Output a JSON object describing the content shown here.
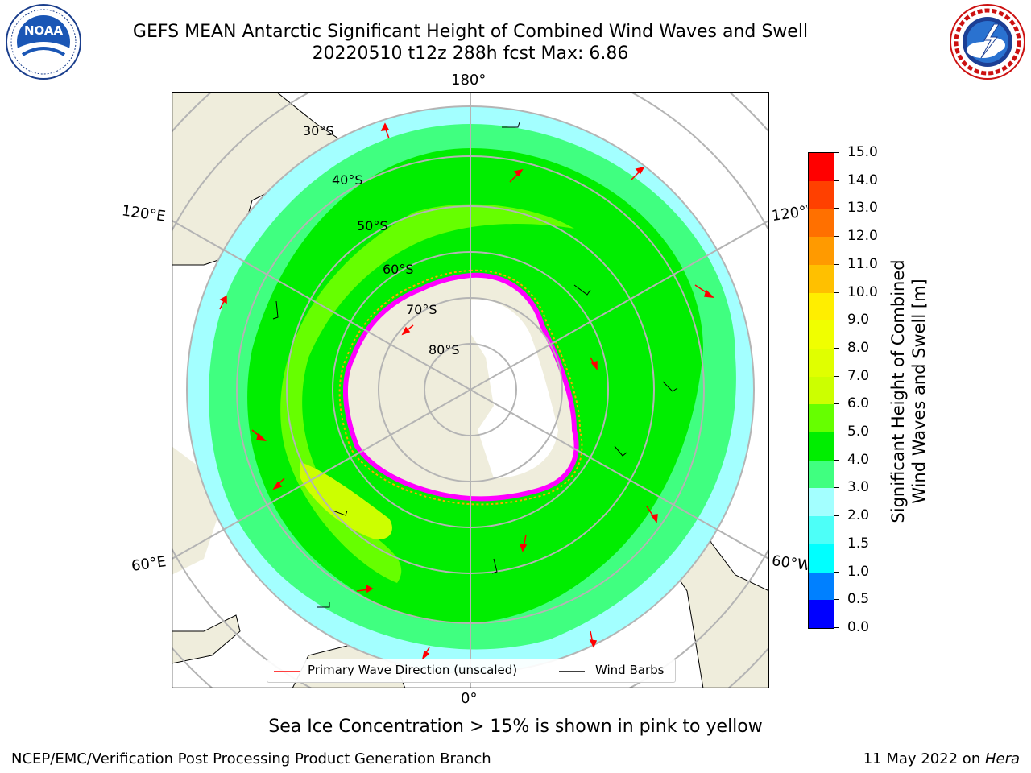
{
  "header": {
    "title_line1": "GEFS MEAN Antarctic Significant Height of Combined Wind Waves and Swell",
    "title_line2": "20220510 t12z 288h fcst   Max: 6.86"
  },
  "logos": {
    "left": {
      "text": "NOAA",
      "ring_text": "NATIONAL OCEANIC AND ATMOSPHERIC ADMINISTRATION · U.S. DEPARTMENT OF COMMERCE"
    },
    "right": {
      "ring_text": "NATIONAL WEATHER SERVICE"
    }
  },
  "map": {
    "longitude_labels": {
      "top": "180°",
      "bottom": "0°",
      "upper_left": "120°E",
      "upper_right": "120°W",
      "lower_left": "60°E",
      "lower_right": "60°W"
    },
    "latitude_labels": [
      "30°S",
      "40°S",
      "50°S",
      "60°S",
      "70°S",
      "80°S"
    ],
    "colors": {
      "ocean_frame": "#ffffff",
      "land": "#efeddc",
      "ice": "#ffffff",
      "grid": "#b4b4b4",
      "wind_barb": "#000000",
      "wave_arrow": "#ff0000",
      "sea_ice_edge": [
        "#ff00ff",
        "#ffa500"
      ]
    }
  },
  "colorbar": {
    "label_line1": "Significant Height of Combined",
    "label_line2": "Wind Waves and Swell [m]",
    "ticks": [
      "15.0",
      "14.0",
      "13.0",
      "12.0",
      "11.0",
      "10.0",
      "9.0",
      "8.0",
      "7.0",
      "6.0",
      "5.0",
      "4.0",
      "3.0",
      "2.0",
      "1.5",
      "1.0",
      "0.5",
      "0.0"
    ],
    "bins": [
      {
        "range": "0.0-0.5",
        "color": "#0000ff"
      },
      {
        "range": "0.5-1.0",
        "color": "#0080ff"
      },
      {
        "range": "1.0-1.5",
        "color": "#00ffff"
      },
      {
        "range": "1.5-2.0",
        "color": "#4dfff8"
      },
      {
        "range": "2.0-3.0",
        "color": "#a3ffff"
      },
      {
        "range": "3.0-4.0",
        "color": "#40ff80"
      },
      {
        "range": "4.0-5.0",
        "color": "#00ee00"
      },
      {
        "range": "5.0-6.0",
        "color": "#66ff00"
      },
      {
        "range": "6.0-7.0",
        "color": "#ccff00"
      },
      {
        "range": "7.0-8.0",
        "color": "#e0ff00"
      },
      {
        "range": "8.0-9.0",
        "color": "#f0ff00"
      },
      {
        "range": "9.0-10.0",
        "color": "#ffee00"
      },
      {
        "range": "10.0-11.0",
        "color": "#ffc000"
      },
      {
        "range": "11.0-12.0",
        "color": "#ff9a00"
      },
      {
        "range": "12.0-13.0",
        "color": "#ff7000"
      },
      {
        "range": "13.0-14.0",
        "color": "#ff4000"
      },
      {
        "range": "14.0-15.0",
        "color": "#ff0000"
      }
    ]
  },
  "legend": {
    "wave_direction": "Primary Wave Direction (unscaled)",
    "wind_barbs": "Wind Barbs"
  },
  "footer": {
    "sea_ice_note": "Sea Ice Concentration > 15% is shown in pink to yellow",
    "credit": "NCEP/EMC/Verification Post Processing Product Generation Branch",
    "date_prefix": "11 May 2022 on ",
    "host": "Hera"
  }
}
